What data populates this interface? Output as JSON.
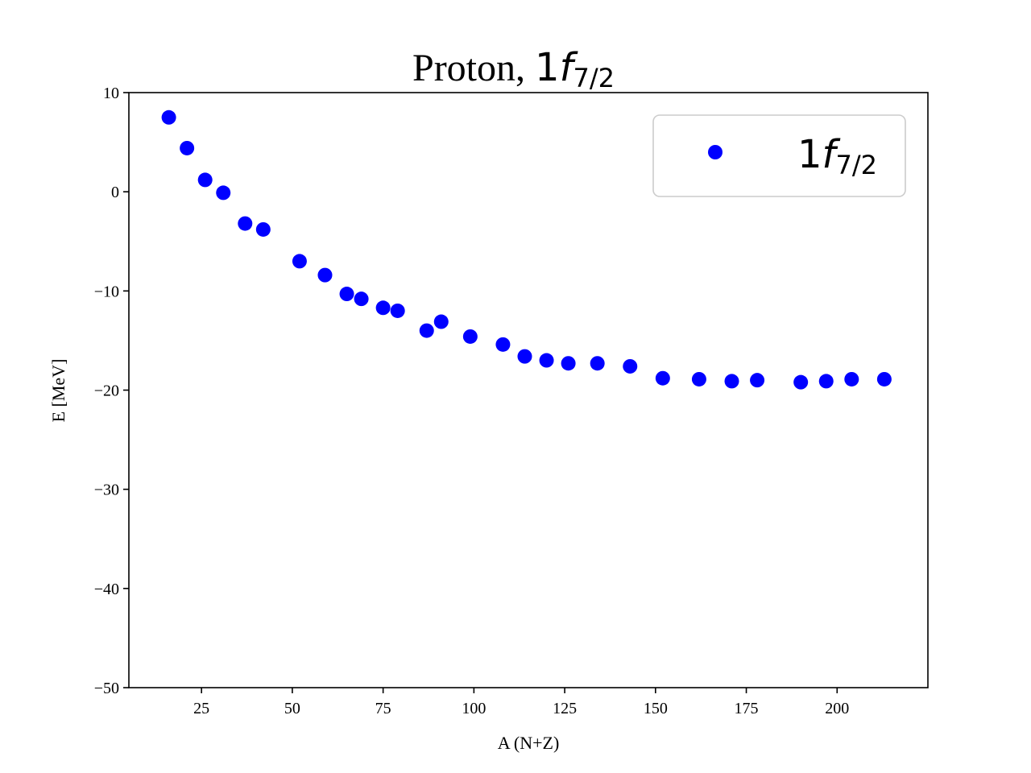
{
  "chart_data": {
    "type": "scatter",
    "title": {
      "text": "Proton, ",
      "math_base": "1",
      "math_var": "f",
      "math_sub": "7/2"
    },
    "xlabel": "A (N+Z)",
    "ylabel": "E [MeV]",
    "xlim": [
      5,
      225
    ],
    "ylim": [
      -50,
      10
    ],
    "xticks": [
      25,
      50,
      75,
      100,
      125,
      150,
      175,
      200
    ],
    "xtick_labels": [
      "25",
      "50",
      "75",
      "100",
      "125",
      "150",
      "175",
      "200"
    ],
    "yticks": [
      10,
      0,
      -10,
      -20,
      -30,
      -40,
      -50
    ],
    "ytick_labels": [
      "10",
      "0",
      "−10",
      "−20",
      "−30",
      "−40",
      "−50"
    ],
    "grid": false,
    "legend_position": "top-right",
    "series": [
      {
        "name_base": "1",
        "name_var": "f",
        "name_sub": "7/2",
        "color": "#0000ff",
        "marker": "circle",
        "x": [
          16,
          21,
          26,
          31,
          37,
          42,
          52,
          59,
          65,
          69,
          75,
          79,
          87,
          91,
          99,
          108,
          114,
          120,
          126,
          134,
          143,
          152,
          162,
          171,
          178,
          190,
          197,
          204,
          213
        ],
        "y": [
          7.5,
          4.4,
          1.2,
          -0.1,
          -3.2,
          -3.8,
          -7.0,
          -8.4,
          -10.3,
          -10.8,
          -11.7,
          -12.0,
          -14.0,
          -13.1,
          -14.6,
          -15.4,
          -16.6,
          -17.0,
          -17.3,
          -17.3,
          -17.6,
          -18.8,
          -18.9,
          -19.1,
          -19.0,
          -19.2,
          -19.1,
          -18.9,
          -18.9
        ]
      }
    ]
  }
}
